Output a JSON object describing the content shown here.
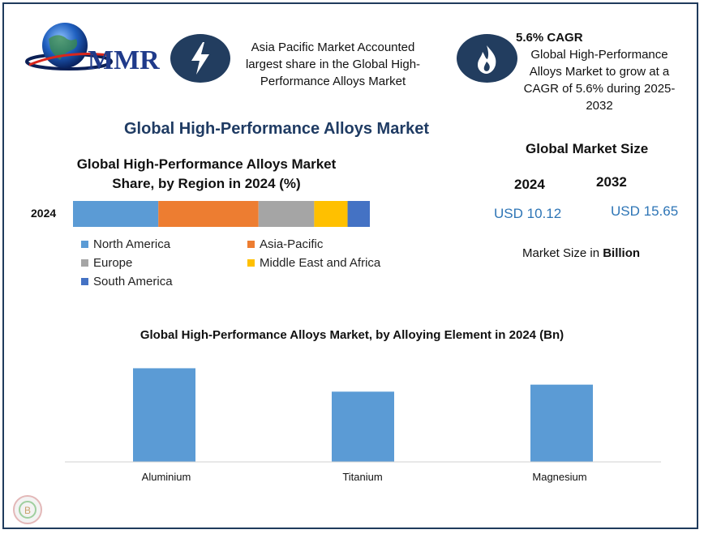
{
  "logo": {
    "text": "MMR"
  },
  "header": {
    "info1": {
      "icon": "lightning-icon",
      "text": "Asia Pacific Market Accounted largest share in the Global High-Performance Alloys Market"
    },
    "info2": {
      "icon": "flame-icon",
      "title": "5.6% CAGR",
      "text": "Global High-Performance Alloys Market to grow at a CAGR of 5.6% during 2025-2032"
    }
  },
  "headline": "Global High-Performance Alloys Market",
  "market_size": {
    "title": "Global Market Size",
    "year1": "2024",
    "year2": "2032",
    "value1": "USD 10.12",
    "value2": "USD 15.65",
    "note_prefix": "Market Size in ",
    "note_bold": "Billion"
  },
  "colors": {
    "brand": "#1f3b5c",
    "bar_blue": "#5b9bd5",
    "usd_blue": "#2e75b6"
  },
  "chart_data": [
    {
      "type": "bar",
      "stacked": true,
      "orientation": "horizontal",
      "title": "Global High-Performance Alloys Market Share, by Region in 2024 (%)",
      "categories": [
        "2024"
      ],
      "series": [
        {
          "name": "North America",
          "values": [
            23
          ],
          "color": "#5b9bd5"
        },
        {
          "name": "Asia-Pacific",
          "values": [
            27
          ],
          "color": "#ed7d31"
        },
        {
          "name": "Europe",
          "values": [
            15
          ],
          "color": "#a5a5a5"
        },
        {
          "name": "Middle East and Africa",
          "values": [
            9
          ],
          "color": "#ffc000"
        },
        {
          "name": "South America",
          "values": [
            6
          ],
          "color": "#4472c4"
        }
      ],
      "legend": "bottom"
    },
    {
      "type": "bar",
      "title": "Global High-Performance Alloys Market, by Alloying Element in 2024 (Bn)",
      "categories": [
        "Aluminium",
        "Titanium",
        "Magnesium"
      ],
      "values": [
        4.0,
        3.0,
        3.3
      ],
      "color": "#5b9bd5",
      "ylim": [
        0,
        4.5
      ],
      "grid": false
    }
  ]
}
